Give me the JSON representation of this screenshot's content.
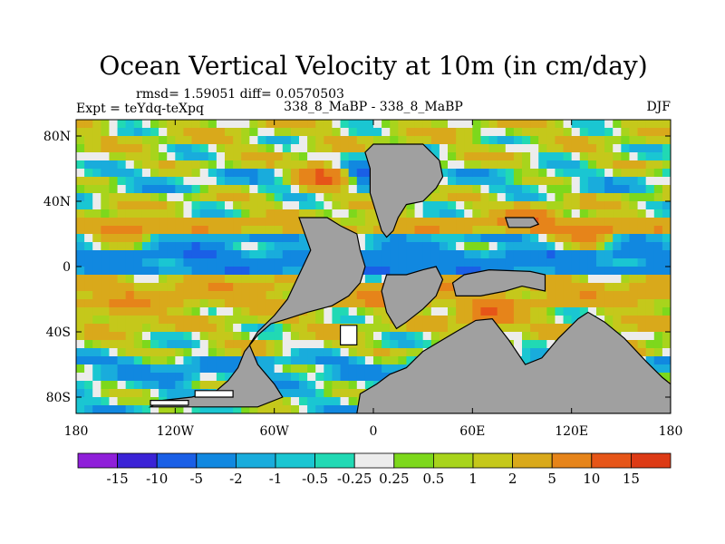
{
  "chart_data": {
    "type": "heatmap",
    "title": "Ocean Vertical Velocity at 10m (in cm/day)",
    "stats_text": "rmsd= 1.59051 diff= 0.0570503",
    "experiment_text": "Expt = teYdq-teXpq",
    "case_text": "338_8_MaBP - 338_8_MaBP",
    "season": "DJF",
    "xlabel": "",
    "ylabel": "",
    "xlim": [
      -180,
      180
    ],
    "ylim": [
      -90,
      90
    ],
    "x_ticks": [
      {
        "value": -180,
        "label": "180"
      },
      {
        "value": -120,
        "label": "120W"
      },
      {
        "value": -60,
        "label": "60W"
      },
      {
        "value": 0,
        "label": "0"
      },
      {
        "value": 60,
        "label": "60E"
      },
      {
        "value": 120,
        "label": "120E"
      },
      {
        "value": 180,
        "label": "180"
      }
    ],
    "y_ticks": [
      {
        "value": 80,
        "label": "80N"
      },
      {
        "value": 40,
        "label": "40N"
      },
      {
        "value": 0,
        "label": "0"
      },
      {
        "value": -40,
        "label": "40S"
      },
      {
        "value": -80,
        "label": "80S"
      }
    ],
    "colorbar": {
      "boundaries": [
        "-15",
        "-10",
        "-5",
        "-2",
        "-1",
        "-0.5",
        "-0.25",
        "0.25",
        "0.5",
        "1",
        "2",
        "5",
        "10",
        "15"
      ],
      "colors": [
        "#8f1fd9",
        "#3b23d6",
        "#1a5fe6",
        "#1188e0",
        "#19acdc",
        "#1ac6d2",
        "#21d9b4",
        "#ececec",
        "#7dd81c",
        "#a8d41c",
        "#c5c81b",
        "#d9a91b",
        "#e6841a",
        "#e65518",
        "#dd3a15"
      ]
    },
    "zones": [
      {
        "lat": [
          75,
          90
        ],
        "value": 1
      },
      {
        "lat": [
          62,
          75
        ],
        "value": 0.7
      },
      {
        "lat": [
          45,
          62
        ],
        "value": -0.4
      },
      {
        "lat": [
          30,
          45
        ],
        "value": 0.8
      },
      {
        "lat": [
          18,
          30
        ],
        "value": 3
      },
      {
        "lat": [
          8,
          18
        ],
        "value": -1.2
      },
      {
        "lat": [
          -3,
          8
        ],
        "value": -3
      },
      {
        "lat": [
          -12,
          -3
        ],
        "value": 2
      },
      {
        "lat": [
          -25,
          -12
        ],
        "value": 3
      },
      {
        "lat": [
          -40,
          -25
        ],
        "value": 1.2
      },
      {
        "lat": [
          -55,
          -40
        ],
        "value": 0.7
      },
      {
        "lat": [
          -68,
          -55
        ],
        "value": -1.5
      },
      {
        "lat": [
          -90,
          -68
        ],
        "value": -0.3
      }
    ],
    "anomalies": [
      {
        "lon": -150,
        "lat": 22,
        "value": 6
      },
      {
        "lon": -100,
        "lat": 10,
        "value": -3
      },
      {
        "lon": -30,
        "lat": 55,
        "value": 12
      },
      {
        "lon": -5,
        "lat": 60,
        "value": -6
      },
      {
        "lon": 95,
        "lat": 30,
        "value": 7
      },
      {
        "lon": 130,
        "lat": 20,
        "value": 8
      },
      {
        "lon": 20,
        "lat": -15,
        "value": 10
      },
      {
        "lon": 70,
        "lat": -30,
        "value": 9
      },
      {
        "lon": -150,
        "lat": -28,
        "value": 4
      },
      {
        "lon": 150,
        "lat": -50,
        "value": 5
      },
      {
        "lon": -120,
        "lat": -70,
        "value": -1.5
      },
      {
        "lon": 5,
        "lat": 0,
        "value": -4
      }
    ],
    "land_regions": [
      {
        "name": "landmass-north",
        "lon_lat": [
          [
            0,
            75
          ],
          [
            30,
            75
          ],
          [
            35,
            70
          ],
          [
            40,
            65
          ],
          [
            42,
            55
          ],
          [
            38,
            48
          ],
          [
            30,
            40
          ],
          [
            20,
            38
          ],
          [
            15,
            30
          ],
          [
            12,
            22
          ],
          [
            8,
            18
          ],
          [
            5,
            22
          ],
          [
            2,
            32
          ],
          [
            -2,
            45
          ],
          [
            -2,
            60
          ],
          [
            -5,
            70
          ]
        ]
      },
      {
        "name": "landmass-west",
        "lon_lat": [
          [
            -45,
            30
          ],
          [
            -28,
            30
          ],
          [
            -20,
            25
          ],
          [
            -10,
            20
          ],
          [
            -8,
            10
          ],
          [
            -5,
            0
          ],
          [
            -8,
            -10
          ],
          [
            -15,
            -18
          ],
          [
            -25,
            -24
          ],
          [
            -40,
            -28
          ],
          [
            -52,
            -32
          ],
          [
            -62,
            -35
          ],
          [
            -70,
            -42
          ],
          [
            -78,
            -52
          ],
          [
            -82,
            -62
          ],
          [
            -88,
            -70
          ],
          [
            -95,
            -76
          ],
          [
            -110,
            -80
          ],
          [
            -128,
            -82
          ],
          [
            -135,
            -86
          ],
          [
            -70,
            -86
          ],
          [
            -55,
            -80
          ],
          [
            -60,
            -72
          ],
          [
            -70,
            -60
          ],
          [
            -75,
            -48
          ],
          [
            -70,
            -40
          ],
          [
            -60,
            -30
          ],
          [
            -52,
            -20
          ],
          [
            -45,
            -5
          ],
          [
            -38,
            10
          ]
        ]
      },
      {
        "name": "landmass-central",
        "lon_lat": [
          [
            8,
            -5
          ],
          [
            20,
            -5
          ],
          [
            30,
            -2
          ],
          [
            38,
            0
          ],
          [
            42,
            -8
          ],
          [
            38,
            -18
          ],
          [
            30,
            -26
          ],
          [
            20,
            -34
          ],
          [
            14,
            -38
          ],
          [
            8,
            -28
          ],
          [
            5,
            -15
          ]
        ]
      },
      {
        "name": "landmass-east",
        "lon_lat": [
          [
            50,
            -18
          ],
          [
            65,
            -18
          ],
          [
            80,
            -15
          ],
          [
            90,
            -12
          ],
          [
            104,
            -15
          ],
          [
            104,
            -5
          ],
          [
            95,
            -3
          ],
          [
            70,
            -2
          ],
          [
            55,
            -5
          ],
          [
            48,
            -10
          ]
        ]
      },
      {
        "name": "landmass-east-north",
        "lon_lat": [
          [
            80,
            30
          ],
          [
            97,
            30
          ],
          [
            100,
            26
          ],
          [
            95,
            24
          ],
          [
            82,
            24
          ]
        ]
      },
      {
        "name": "landmass-south-east",
        "lon_lat": [
          [
            20,
            -62
          ],
          [
            30,
            -52
          ],
          [
            50,
            -40
          ],
          [
            62,
            -33
          ],
          [
            72,
            -32
          ],
          [
            82,
            -45
          ],
          [
            92,
            -60
          ],
          [
            102,
            -56
          ],
          [
            112,
            -44
          ],
          [
            124,
            -32
          ],
          [
            130,
            -28
          ],
          [
            140,
            -34
          ],
          [
            152,
            -44
          ],
          [
            165,
            -58
          ],
          [
            175,
            -68
          ],
          [
            180,
            -72
          ],
          [
            180,
            -90
          ],
          [
            -10,
            -90
          ],
          [
            -8,
            -78
          ],
          [
            2,
            -72
          ],
          [
            10,
            -66
          ]
        ]
      }
    ],
    "ice_regions": [
      {
        "name": "white-strip-1",
        "lon_lat": [
          [
            -108,
            -76
          ],
          [
            -85,
            -76
          ],
          [
            -85,
            -80
          ],
          [
            -108,
            -80
          ]
        ]
      },
      {
        "name": "white-strip-2",
        "lon_lat": [
          [
            -135,
            -82
          ],
          [
            -112,
            -82
          ],
          [
            -112,
            -85
          ],
          [
            -135,
            -85
          ]
        ]
      },
      {
        "name": "white-patch",
        "lon_lat": [
          [
            -20,
            -36
          ],
          [
            -10,
            -36
          ],
          [
            -10,
            -48
          ],
          [
            -20,
            -48
          ]
        ]
      }
    ]
  }
}
